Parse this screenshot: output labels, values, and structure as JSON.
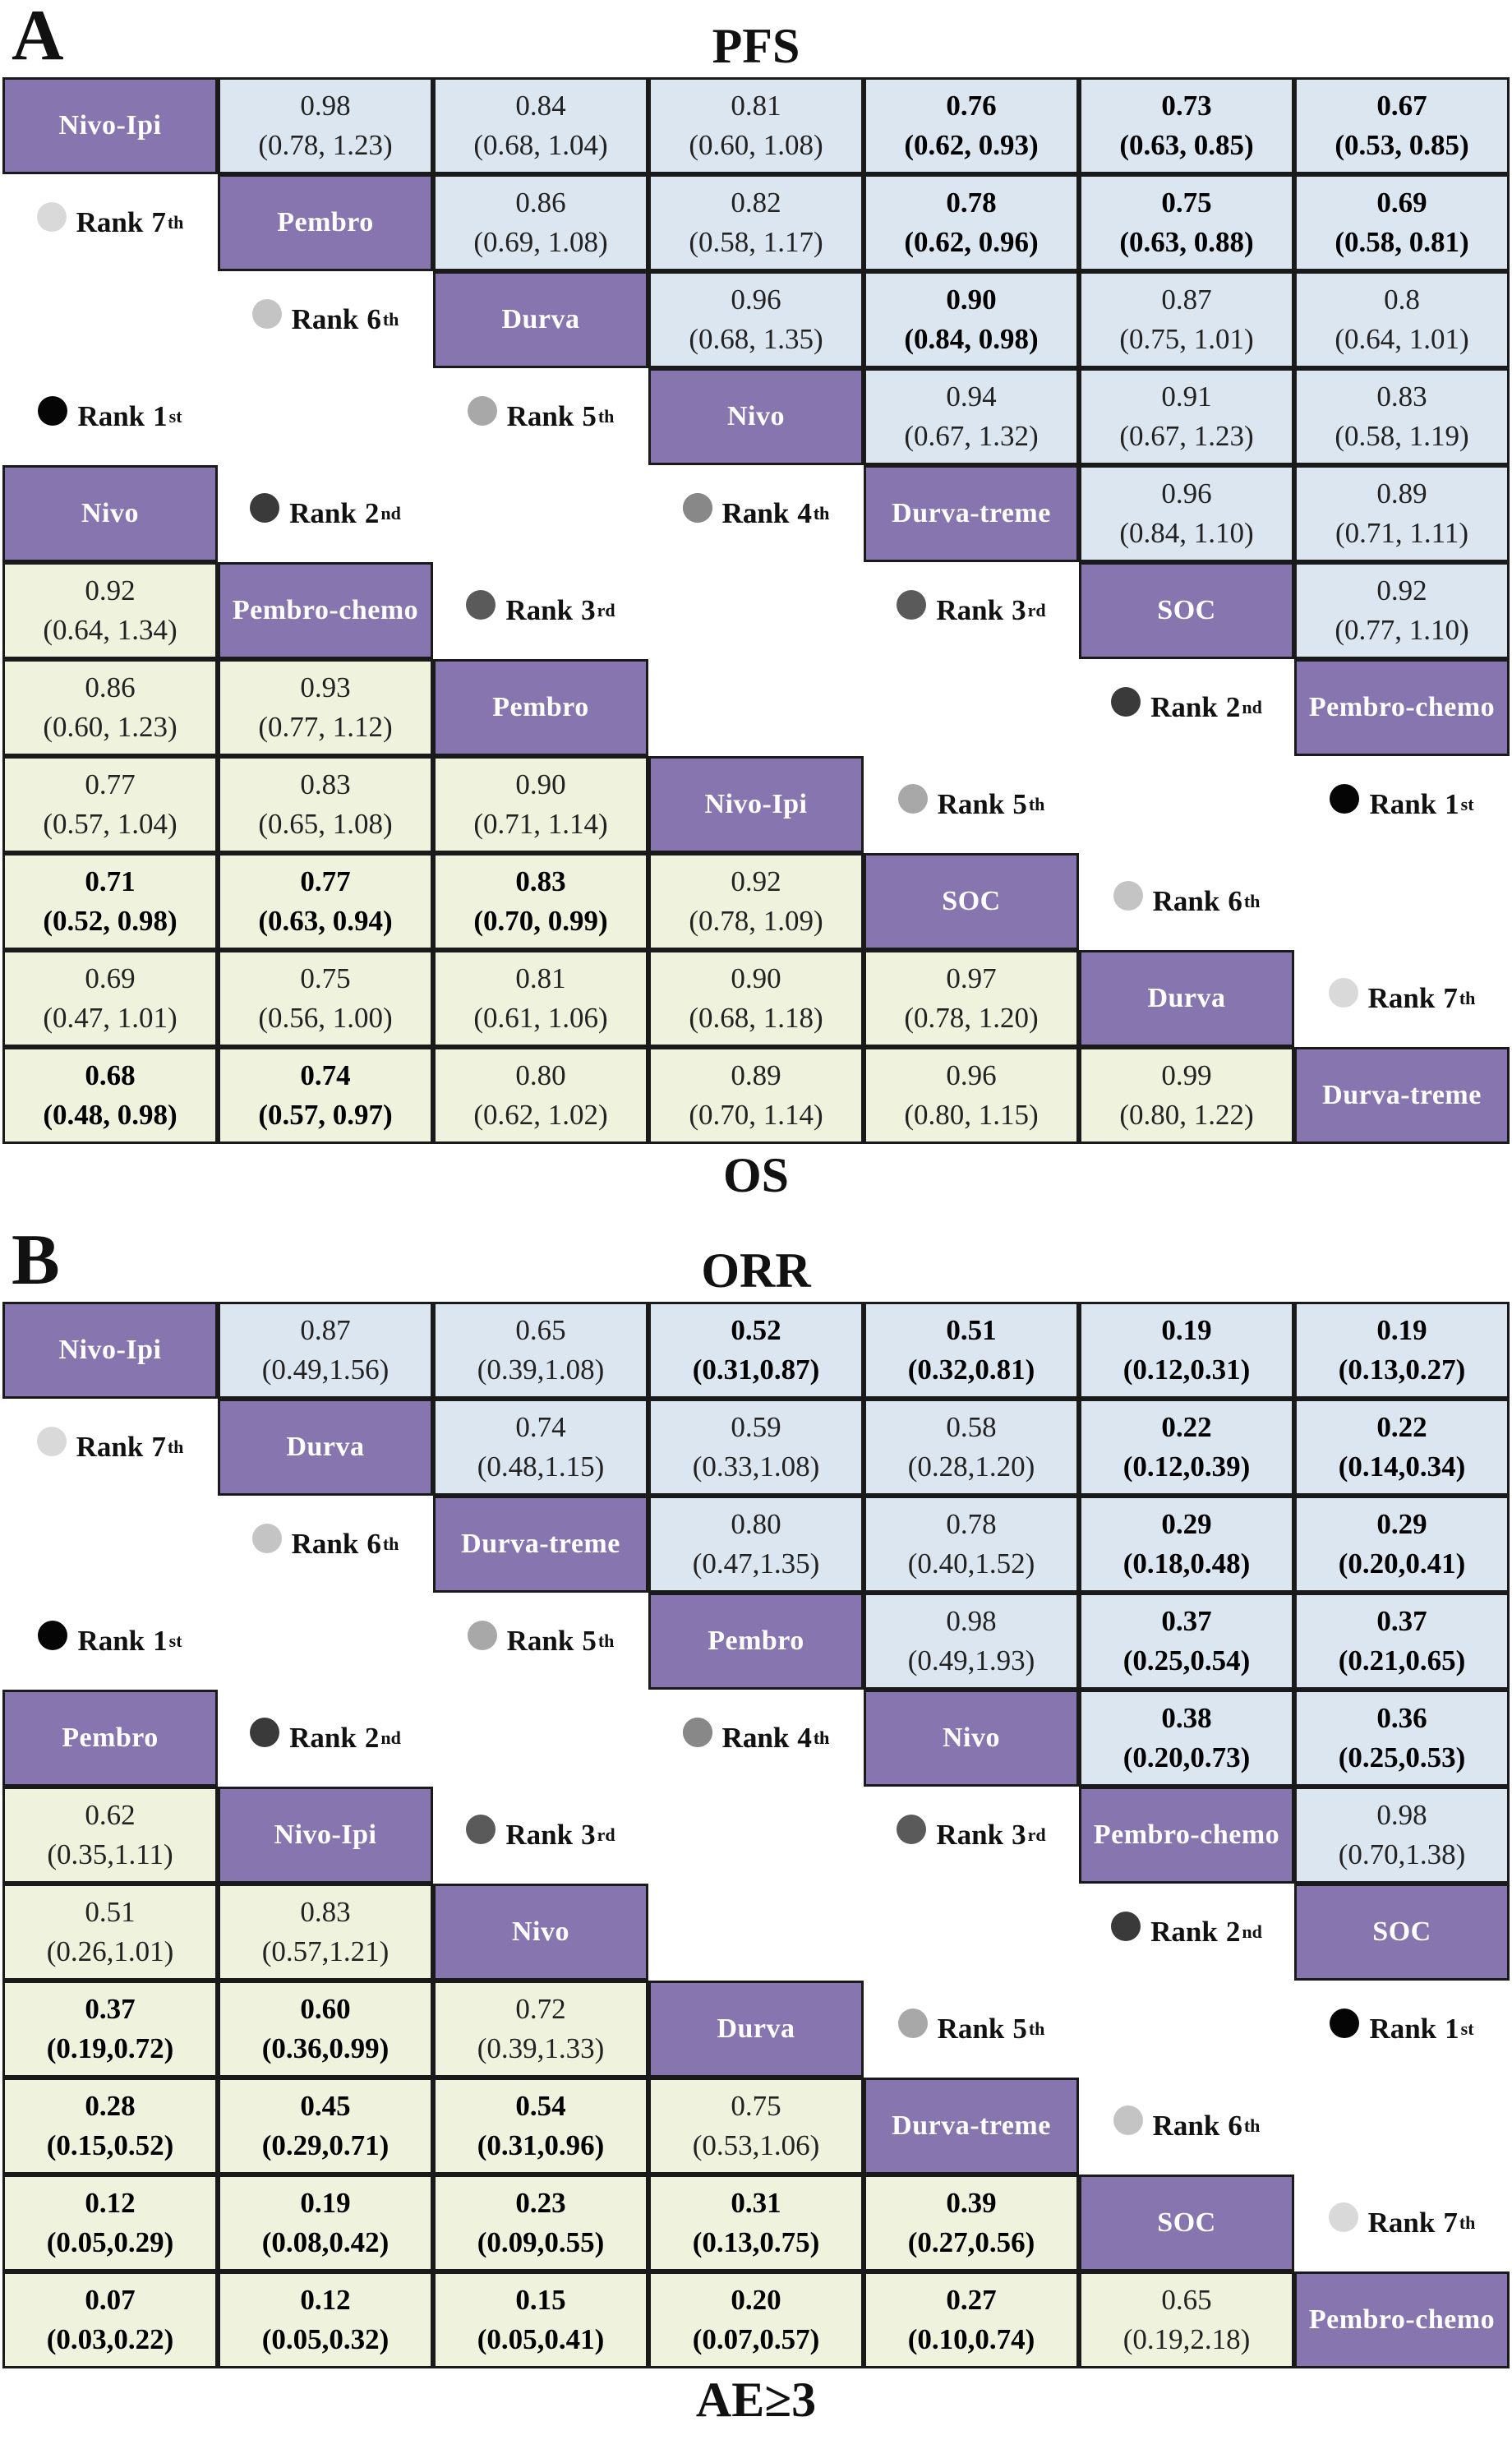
{
  "colors": {
    "diag": "#8775b0",
    "upper": "#dce6f1",
    "lower": "#eff2dd"
  },
  "panels": [
    {
      "letter": "A",
      "title_top": "PFS",
      "title_bottom": "OS",
      "upper_diag": [
        "Nivo-Ipi",
        "Pembro",
        "Durva",
        "Nivo",
        "Durva-treme",
        "SOC",
        "Pembro-chemo"
      ],
      "lower_diag": [
        "Nivo",
        "Pembro-chemo",
        "Pembro",
        "Nivo-Ipi",
        "SOC",
        "Durva",
        "Durva-treme"
      ],
      "upper_values": [
        [
          "0.98",
          "(0.78, 1.23)",
          false
        ],
        [
          "0.84",
          "(0.68, 1.04)",
          false
        ],
        [
          "0.81",
          "(0.60, 1.08)",
          false
        ],
        [
          "0.76",
          "(0.62, 0.93)",
          true
        ],
        [
          "0.73",
          "(0.63, 0.85)",
          true
        ],
        [
          "0.67",
          "(0.53, 0.85)",
          true
        ],
        [
          "0.86",
          "(0.69, 1.08)",
          false
        ],
        [
          "0.82",
          "(0.58, 1.17)",
          false
        ],
        [
          "0.78",
          "(0.62, 0.96)",
          true
        ],
        [
          "0.75",
          "(0.63, 0.88)",
          true
        ],
        [
          "0.69",
          "(0.58, 0.81)",
          true
        ],
        [
          "0.96",
          "(0.68, 1.35)",
          false
        ],
        [
          "0.90",
          "(0.84, 0.98)",
          true
        ],
        [
          "0.87",
          "(0.75, 1.01)",
          false
        ],
        [
          "0.8",
          "(0.64, 1.01)",
          false
        ],
        [
          "0.94",
          "(0.67, 1.32)",
          false
        ],
        [
          "0.91",
          "(0.67, 1.23)",
          false
        ],
        [
          "0.83",
          "(0.58, 1.19)",
          false
        ],
        [
          "0.96",
          "(0.84, 1.10)",
          false
        ],
        [
          "0.89",
          "(0.71, 1.11)",
          false
        ],
        [
          "0.92",
          "(0.77, 1.10)",
          false
        ]
      ],
      "lower_values": [
        [
          "0.92",
          "(0.64, 1.34)",
          false
        ],
        [
          "0.86",
          "(0.60, 1.23)",
          false
        ],
        [
          "0.93",
          "(0.77, 1.12)",
          false
        ],
        [
          "0.77",
          "(0.57, 1.04)",
          false
        ],
        [
          "0.83",
          "(0.65, 1.08)",
          false
        ],
        [
          "0.90",
          "(0.71, 1.14)",
          false
        ],
        [
          "0.71",
          "(0.52, 0.98)",
          true
        ],
        [
          "0.77",
          "(0.63, 0.94)",
          true
        ],
        [
          "0.83",
          "(0.70, 0.99)",
          true
        ],
        [
          "0.92",
          "(0.78, 1.09)",
          false
        ],
        [
          "0.69",
          "(0.47, 1.01)",
          false
        ],
        [
          "0.75",
          "(0.56, 1.00)",
          false
        ],
        [
          "0.81",
          "(0.61, 1.06)",
          false
        ],
        [
          "0.90",
          "(0.68, 1.18)",
          false
        ],
        [
          "0.97",
          "(0.78, 1.20)",
          false
        ],
        [
          "0.68",
          "(0.48, 0.98)",
          true
        ],
        [
          "0.74",
          "(0.57, 0.97)",
          true
        ],
        [
          "0.80",
          "(0.62, 1.02)",
          false
        ],
        [
          "0.89",
          "(0.70, 1.14)",
          false
        ],
        [
          "0.96",
          "(0.80, 1.15)",
          false
        ],
        [
          "0.99",
          "(0.80, 1.22)",
          false
        ]
      ],
      "upper_ranks": [
        [
          "7",
          "th",
          "#d9d9d9"
        ],
        [
          "6",
          "th",
          "#c4c4c4"
        ],
        [
          "1",
          "st",
          "#050505"
        ],
        [
          "5",
          "th",
          "#a8a8a8"
        ],
        [
          "2",
          "nd",
          "#3a3a3a"
        ],
        [
          "4",
          "th",
          "#888888"
        ],
        [
          "3",
          "rd",
          "#5a5a5a"
        ]
      ],
      "lower_ranks": [
        [
          "4",
          "th",
          "#888888"
        ],
        [
          "3",
          "rd",
          "#5a5a5a"
        ],
        [
          "2",
          "nd",
          "#3a3a3a"
        ],
        [
          "5",
          "th",
          "#a8a8a8"
        ],
        [
          "1",
          "st",
          "#050505"
        ],
        [
          "6",
          "th",
          "#c4c4c4"
        ],
        [
          "7",
          "th",
          "#d9d9d9"
        ]
      ]
    },
    {
      "letter": "B",
      "title_top": "ORR",
      "title_bottom": "AE≥3",
      "upper_diag": [
        "Nivo-Ipi",
        "Durva",
        "Durva-treme",
        "Pembro",
        "Nivo",
        "Pembro-chemo",
        "SOC"
      ],
      "lower_diag": [
        "Pembro",
        "Nivo-Ipi",
        "Nivo",
        "Durva",
        "Durva-treme",
        "SOC",
        "Pembro-chemo"
      ],
      "upper_values": [
        [
          "0.87",
          "(0.49,1.56)",
          false
        ],
        [
          "0.65",
          "(0.39,1.08)",
          false
        ],
        [
          "0.52",
          "(0.31,0.87)",
          true
        ],
        [
          "0.51",
          "(0.32,0.81)",
          true
        ],
        [
          "0.19",
          "(0.12,0.31)",
          true
        ],
        [
          "0.19",
          "(0.13,0.27)",
          true
        ],
        [
          "0.74",
          "(0.48,1.15)",
          false
        ],
        [
          "0.59",
          "(0.33,1.08)",
          false
        ],
        [
          "0.58",
          "(0.28,1.20)",
          false
        ],
        [
          "0.22",
          "(0.12,0.39)",
          true
        ],
        [
          "0.22",
          "(0.14,0.34)",
          true
        ],
        [
          "0.80",
          "(0.47,1.35)",
          false
        ],
        [
          "0.78",
          "(0.40,1.52)",
          false
        ],
        [
          "0.29",
          "(0.18,0.48)",
          true
        ],
        [
          "0.29",
          "(0.20,0.41)",
          true
        ],
        [
          "0.98",
          "(0.49,1.93)",
          false
        ],
        [
          "0.37",
          "(0.25,0.54)",
          true
        ],
        [
          "0.37",
          "(0.21,0.65)",
          true
        ],
        [
          "0.38",
          "(0.20,0.73)",
          true
        ],
        [
          "0.36",
          "(0.25,0.53)",
          true
        ],
        [
          "0.98",
          "(0.70,1.38)",
          false
        ]
      ],
      "lower_values": [
        [
          "0.62",
          "(0.35,1.11)",
          false
        ],
        [
          "0.51",
          "(0.26,1.01)",
          false
        ],
        [
          "0.83",
          "(0.57,1.21)",
          false
        ],
        [
          "0.37",
          "(0.19,0.72)",
          true
        ],
        [
          "0.60",
          "(0.36,0.99)",
          true
        ],
        [
          "0.72",
          "(0.39,1.33)",
          false
        ],
        [
          "0.28",
          "(0.15,0.52)",
          true
        ],
        [
          "0.45",
          "(0.29,0.71)",
          true
        ],
        [
          "0.54",
          "(0.31,0.96)",
          true
        ],
        [
          "0.75",
          "(0.53,1.06)",
          false
        ],
        [
          "0.12",
          "(0.05,0.29)",
          true
        ],
        [
          "0.19",
          "(0.08,0.42)",
          true
        ],
        [
          "0.23",
          "(0.09,0.55)",
          true
        ],
        [
          "0.31",
          "(0.13,0.75)",
          true
        ],
        [
          "0.39",
          "(0.27,0.56)",
          true
        ],
        [
          "0.07",
          "(0.03,0.22)",
          true
        ],
        [
          "0.12",
          "(0.05,0.32)",
          true
        ],
        [
          "0.15",
          "(0.05,0.41)",
          true
        ],
        [
          "0.20",
          "(0.07,0.57)",
          true
        ],
        [
          "0.27",
          "(0.10,0.74)",
          true
        ],
        [
          "0.65",
          "(0.19,2.18)",
          false
        ]
      ],
      "upper_ranks": [
        [
          "7",
          "th",
          "#d9d9d9"
        ],
        [
          "6",
          "th",
          "#c4c4c4"
        ],
        [
          "1",
          "st",
          "#050505"
        ],
        [
          "5",
          "th",
          "#a8a8a8"
        ],
        [
          "2",
          "nd",
          "#3a3a3a"
        ],
        [
          "4",
          "th",
          "#888888"
        ],
        [
          "3",
          "rd",
          "#5a5a5a"
        ]
      ],
      "lower_ranks": [
        [
          "4",
          "th",
          "#888888"
        ],
        [
          "3",
          "rd",
          "#5a5a5a"
        ],
        [
          "2",
          "nd",
          "#3a3a3a"
        ],
        [
          "5",
          "th",
          "#a8a8a8"
        ],
        [
          "1",
          "st",
          "#050505"
        ],
        [
          "6",
          "th",
          "#c4c4c4"
        ],
        [
          "7",
          "th",
          "#d9d9d9"
        ]
      ]
    }
  ]
}
